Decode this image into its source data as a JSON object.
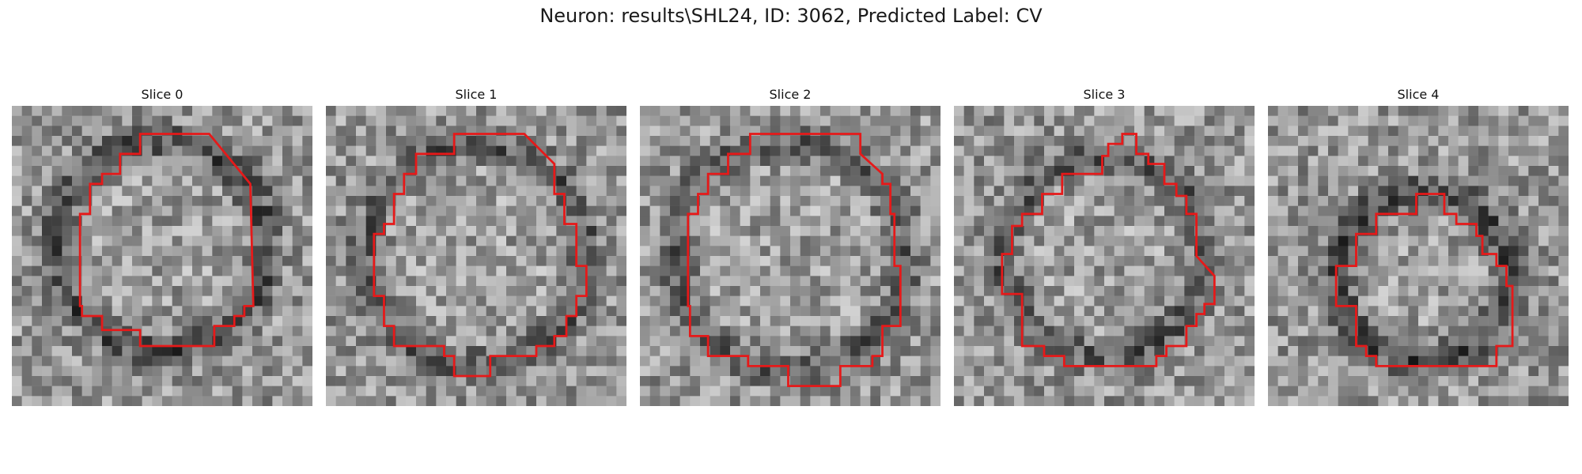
{
  "figure": {
    "title": "Neuron: results\\SHL24, ID: 3062, Predicted Label: CV"
  },
  "panels": [
    {
      "title": "Slice 0"
    },
    {
      "title": "Slice 1"
    },
    {
      "title": "Slice 2"
    },
    {
      "title": "Slice 3"
    },
    {
      "title": "Slice 4"
    }
  ],
  "colors": {
    "contour": "#e61919",
    "background": "#ffffff"
  }
}
